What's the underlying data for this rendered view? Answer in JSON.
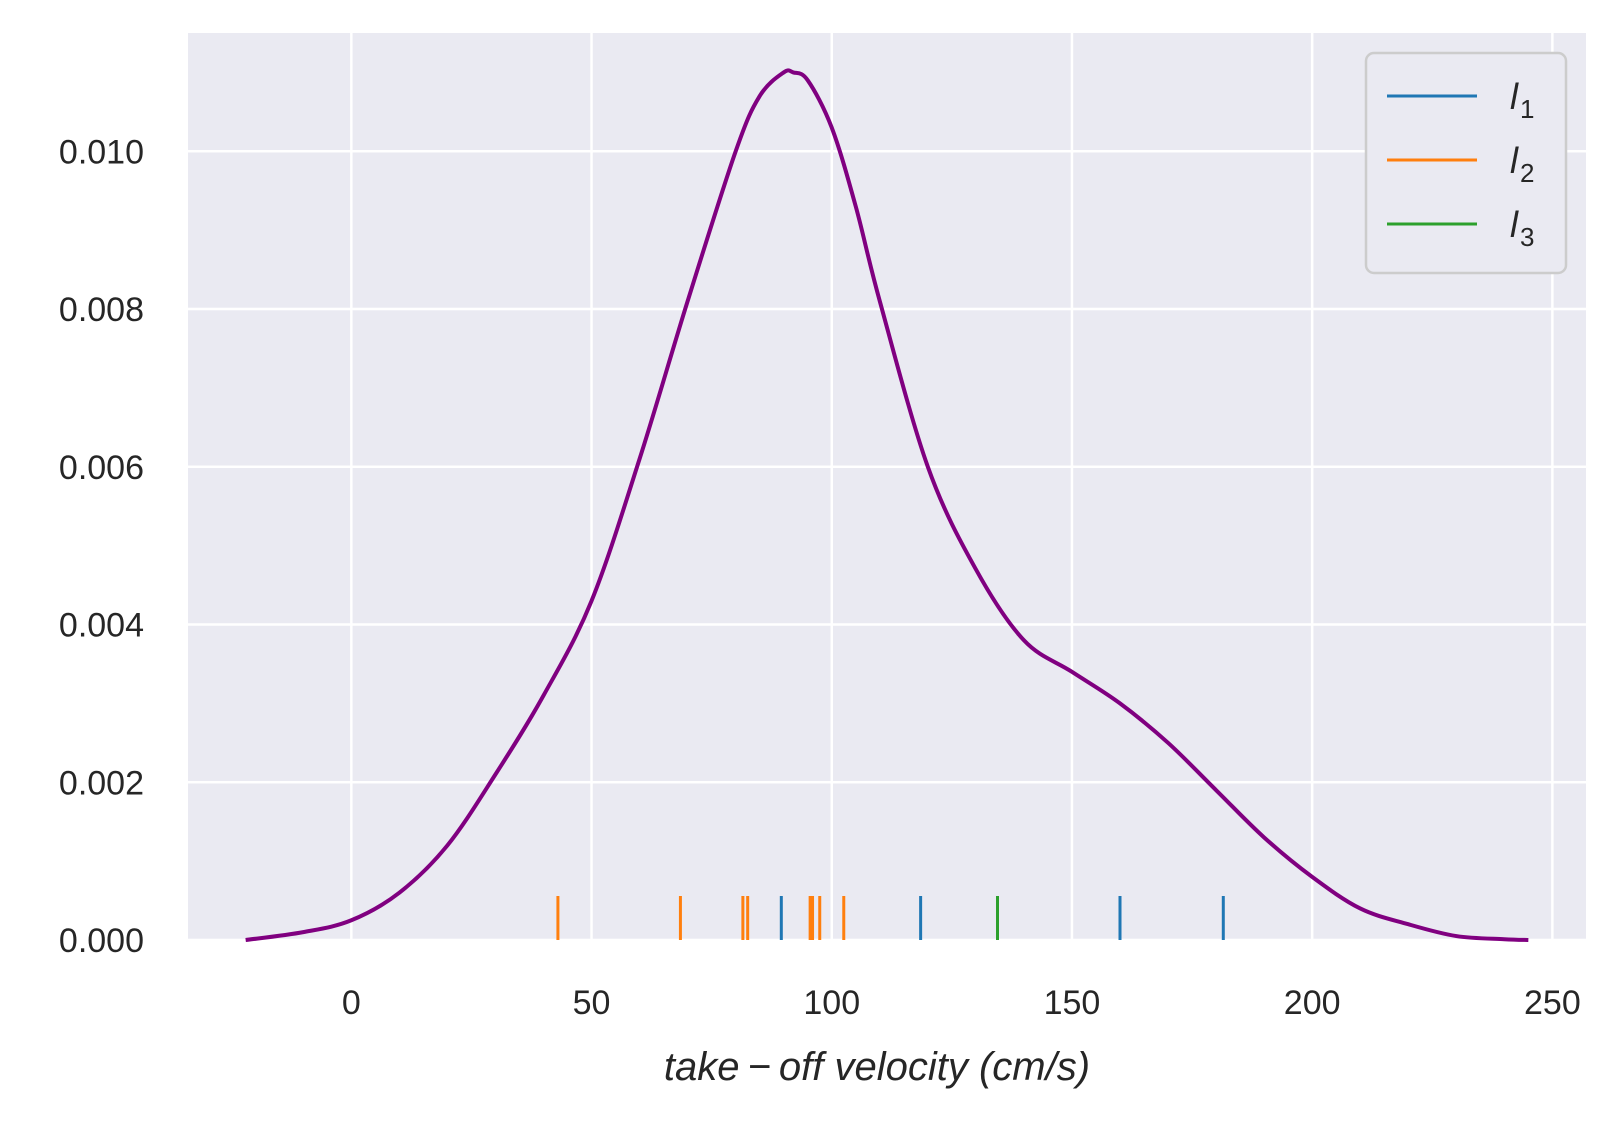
{
  "chart_data": {
    "type": "line",
    "title": "",
    "xlabel": "take − off velocity (cm/s)",
    "ylabel": "",
    "xlim": [
      -34,
      257
    ],
    "ylim": [
      0,
      0.0115
    ],
    "x_ticks": [
      0,
      50,
      100,
      150,
      200,
      250
    ],
    "x_tick_labels": [
      "0",
      "50",
      "100",
      "150",
      "200",
      "250"
    ],
    "y_ticks": [
      0,
      0.002,
      0.004,
      0.006,
      0.008,
      0.01
    ],
    "y_tick_labels": [
      "0.000",
      "0.002",
      "0.004",
      "0.006",
      "0.008",
      "0.010"
    ],
    "grid": true,
    "background": "#eaeaf2",
    "legend_position": "top-right",
    "legend": [
      {
        "label": "l",
        "sub": "1",
        "color": "#1f77b4"
      },
      {
        "label": "l",
        "sub": "2",
        "color": "#ff7f0e"
      },
      {
        "label": "l",
        "sub": "3",
        "color": "#2ca02c"
      }
    ],
    "density_curve": {
      "color": "#800080",
      "x": [
        -22,
        -10,
        0,
        10,
        20,
        30,
        40,
        50,
        60,
        70,
        80,
        85,
        90,
        92,
        95,
        100,
        105,
        110,
        120,
        130,
        140,
        150,
        160,
        170,
        180,
        190,
        200,
        210,
        220,
        230,
        240,
        245
      ],
      "y": [
        0.0,
        0.0001,
        0.00025,
        0.0006,
        0.0012,
        0.0021,
        0.0031,
        0.0043,
        0.0061,
        0.0081,
        0.01,
        0.0107,
        0.011,
        0.011,
        0.0109,
        0.0103,
        0.0093,
        0.0081,
        0.006,
        0.0047,
        0.0038,
        0.0034,
        0.003,
        0.0025,
        0.0019,
        0.0013,
        0.0008,
        0.0004,
        0.0002,
        5e-05,
        1e-05,
        0.0
      ]
    },
    "rug": [
      {
        "series": "l1",
        "color": "#1f77b4",
        "x": [
          89.5,
          118.5,
          160,
          181.5
        ]
      },
      {
        "series": "l2",
        "color": "#ff7f0e",
        "x": [
          43,
          68.5,
          81.5,
          82.5,
          95.5,
          96,
          97.5,
          102.5
        ]
      },
      {
        "series": "l3",
        "color": "#2ca02c",
        "x": [
          134.5
        ]
      }
    ]
  }
}
